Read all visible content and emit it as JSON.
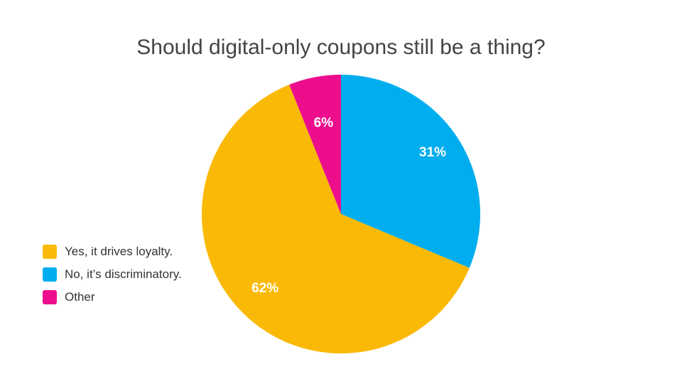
{
  "chart_data": {
    "type": "pie",
    "title": "Should digital-only coupons still be a thing?",
    "slices": [
      {
        "label": "No, it’s discriminatory.",
        "value": 31,
        "value_label": "31%",
        "color": "#00AEEF"
      },
      {
        "label": "Yes, it drives loyalty.",
        "value": 62,
        "value_label": "62%",
        "color": "#FBB907"
      },
      {
        "label": "Other",
        "value": 6,
        "value_label": "6%",
        "color": "#EC0E8C"
      }
    ],
    "legend": {
      "placement": "left",
      "items": [
        {
          "label": "Yes, it drives loyalty.",
          "color": "#FBB907"
        },
        {
          "label": "No, it’s discriminatory.",
          "color": "#00AEEF"
        },
        {
          "label": "Other",
          "color": "#EC0E8C"
        }
      ]
    }
  }
}
